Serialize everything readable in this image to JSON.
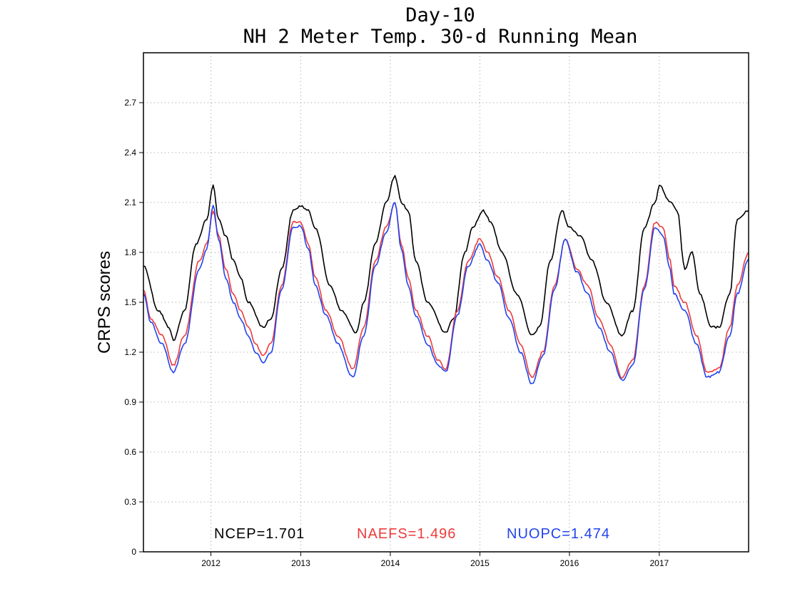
{
  "chart_data": {
    "type": "line",
    "title": "Day-10",
    "subtitle": "NH 2 Meter Temp. 30-d Running Mean",
    "xlabel": "",
    "ylabel": "CRPS scores",
    "ylim": [
      0,
      3.0
    ],
    "xlim": [
      "2011-04-01",
      "2017-12-31"
    ],
    "y_ticks": [
      "0",
      "0.3",
      "0.6",
      "0.9",
      "1.2",
      "1.5",
      "1.8",
      "2.1",
      "2.4",
      "2.7"
    ],
    "x_ticks": [
      "2012",
      "2013",
      "2014",
      "2015",
      "2016",
      "2017"
    ],
    "grid": true,
    "legend_position": "bottom-inside",
    "series": [
      {
        "name": "NCEP=1.701",
        "color": "#000000",
        "points": [
          [
            "2011-04-01",
            1.72
          ],
          [
            "2011-06-01",
            1.45
          ],
          [
            "2011-07-15",
            1.35
          ],
          [
            "2011-08-01",
            1.27
          ],
          [
            "2011-09-15",
            1.45
          ],
          [
            "2011-11-01",
            1.85
          ],
          [
            "2011-12-15",
            2.0
          ],
          [
            "2012-01-10",
            2.2
          ],
          [
            "2012-02-01",
            2.0
          ],
          [
            "2012-03-01",
            1.9
          ],
          [
            "2012-04-01",
            1.75
          ],
          [
            "2012-05-01",
            1.65
          ],
          [
            "2012-06-01",
            1.5
          ],
          [
            "2012-08-01",
            1.35
          ],
          [
            "2012-09-01",
            1.4
          ],
          [
            "2012-10-15",
            1.7
          ],
          [
            "2012-12-01",
            2.05
          ],
          [
            "2013-01-01",
            2.08
          ],
          [
            "2013-02-01",
            2.05
          ],
          [
            "2013-03-01",
            1.95
          ],
          [
            "2013-05-01",
            1.6
          ],
          [
            "2013-06-15",
            1.45
          ],
          [
            "2013-08-15",
            1.32
          ],
          [
            "2013-09-15",
            1.5
          ],
          [
            "2013-11-01",
            1.85
          ],
          [
            "2013-12-15",
            2.1
          ],
          [
            "2014-01-20",
            2.26
          ],
          [
            "2014-02-15",
            2.1
          ],
          [
            "2014-03-15",
            2.05
          ],
          [
            "2014-04-15",
            1.75
          ],
          [
            "2014-06-01",
            1.5
          ],
          [
            "2014-08-15",
            1.32
          ],
          [
            "2014-09-15",
            1.4
          ],
          [
            "2014-11-01",
            1.8
          ],
          [
            "2014-12-01",
            1.95
          ],
          [
            "2015-01-15",
            2.05
          ],
          [
            "2015-02-15",
            1.98
          ],
          [
            "2015-04-01",
            1.8
          ],
          [
            "2015-06-01",
            1.55
          ],
          [
            "2015-08-01",
            1.3
          ],
          [
            "2015-09-01",
            1.35
          ],
          [
            "2015-10-15",
            1.75
          ],
          [
            "2015-12-01",
            2.05
          ],
          [
            "2016-01-01",
            1.95
          ],
          [
            "2016-02-15",
            1.9
          ],
          [
            "2016-04-01",
            1.75
          ],
          [
            "2016-06-01",
            1.5
          ],
          [
            "2016-08-01",
            1.3
          ],
          [
            "2016-09-15",
            1.45
          ],
          [
            "2016-11-01",
            1.95
          ],
          [
            "2016-12-15",
            2.1
          ],
          [
            "2017-01-01",
            2.2
          ],
          [
            "2017-02-15",
            2.1
          ],
          [
            "2017-03-15",
            2.05
          ],
          [
            "2017-04-15",
            1.7
          ],
          [
            "2017-05-15",
            1.8
          ],
          [
            "2017-06-15",
            1.55
          ],
          [
            "2017-08-01",
            1.35
          ],
          [
            "2017-09-01",
            1.35
          ],
          [
            "2017-10-15",
            1.55
          ],
          [
            "2017-11-15",
            2.0
          ],
          [
            "2017-12-31",
            2.05
          ]
        ]
      },
      {
        "name": "NAEFS=1.496",
        "color": "#ee3b3b",
        "points": [
          [
            "2011-04-01",
            1.58
          ],
          [
            "2011-05-01",
            1.4
          ],
          [
            "2011-06-15",
            1.3
          ],
          [
            "2011-08-01",
            1.12
          ],
          [
            "2011-09-15",
            1.3
          ],
          [
            "2011-11-15",
            1.75
          ],
          [
            "2011-12-15",
            1.85
          ],
          [
            "2012-01-10",
            2.05
          ],
          [
            "2012-02-01",
            1.9
          ],
          [
            "2012-03-01",
            1.7
          ],
          [
            "2012-04-01",
            1.55
          ],
          [
            "2012-05-01",
            1.45
          ],
          [
            "2012-06-01",
            1.35
          ],
          [
            "2012-07-01",
            1.25
          ],
          [
            "2012-08-01",
            1.18
          ],
          [
            "2012-09-01",
            1.25
          ],
          [
            "2012-10-15",
            1.6
          ],
          [
            "2012-12-01",
            1.98
          ],
          [
            "2013-01-01",
            1.98
          ],
          [
            "2013-02-01",
            1.85
          ],
          [
            "2013-03-01",
            1.65
          ],
          [
            "2013-04-15",
            1.45
          ],
          [
            "2013-06-01",
            1.3
          ],
          [
            "2013-08-01",
            1.1
          ],
          [
            "2013-09-15",
            1.35
          ],
          [
            "2013-11-01",
            1.75
          ],
          [
            "2013-12-15",
            1.95
          ],
          [
            "2014-01-20",
            2.1
          ],
          [
            "2014-02-15",
            1.85
          ],
          [
            "2014-03-15",
            1.65
          ],
          [
            "2014-04-15",
            1.45
          ],
          [
            "2014-06-01",
            1.3
          ],
          [
            "2014-07-15",
            1.15
          ],
          [
            "2014-08-15",
            1.1
          ],
          [
            "2014-10-01",
            1.45
          ],
          [
            "2014-11-15",
            1.75
          ],
          [
            "2015-01-01",
            1.88
          ],
          [
            "2015-02-01",
            1.8
          ],
          [
            "2015-03-15",
            1.65
          ],
          [
            "2015-05-01",
            1.45
          ],
          [
            "2015-06-15",
            1.25
          ],
          [
            "2015-08-01",
            1.05
          ],
          [
            "2015-09-15",
            1.2
          ],
          [
            "2015-11-01",
            1.6
          ],
          [
            "2015-12-15",
            1.88
          ],
          [
            "2016-02-01",
            1.7
          ],
          [
            "2016-03-15",
            1.6
          ],
          [
            "2016-05-01",
            1.4
          ],
          [
            "2016-06-15",
            1.25
          ],
          [
            "2016-08-01",
            1.05
          ],
          [
            "2016-09-15",
            1.15
          ],
          [
            "2016-11-01",
            1.6
          ],
          [
            "2016-12-15",
            1.98
          ],
          [
            "2017-01-15",
            1.95
          ],
          [
            "2017-02-15",
            1.75
          ],
          [
            "2017-03-01",
            1.6
          ],
          [
            "2017-04-15",
            1.5
          ],
          [
            "2017-06-01",
            1.3
          ],
          [
            "2017-07-15",
            1.08
          ],
          [
            "2017-09-01",
            1.1
          ],
          [
            "2017-10-15",
            1.35
          ],
          [
            "2017-11-15",
            1.6
          ],
          [
            "2017-12-31",
            1.8
          ]
        ]
      },
      {
        "name": "NUOPC=1.474",
        "color": "#2244ee",
        "points": [
          [
            "2011-04-01",
            1.55
          ],
          [
            "2011-05-01",
            1.38
          ],
          [
            "2011-06-15",
            1.25
          ],
          [
            "2011-08-01",
            1.08
          ],
          [
            "2011-09-15",
            1.25
          ],
          [
            "2011-11-15",
            1.7
          ],
          [
            "2011-12-15",
            1.82
          ],
          [
            "2012-01-10",
            2.08
          ],
          [
            "2012-02-01",
            1.88
          ],
          [
            "2012-03-01",
            1.65
          ],
          [
            "2012-04-01",
            1.5
          ],
          [
            "2012-05-01",
            1.4
          ],
          [
            "2012-06-01",
            1.3
          ],
          [
            "2012-07-01",
            1.2
          ],
          [
            "2012-08-01",
            1.14
          ],
          [
            "2012-09-01",
            1.2
          ],
          [
            "2012-10-15",
            1.58
          ],
          [
            "2012-12-01",
            1.95
          ],
          [
            "2013-01-01",
            1.96
          ],
          [
            "2013-02-01",
            1.82
          ],
          [
            "2013-03-01",
            1.6
          ],
          [
            "2013-04-15",
            1.42
          ],
          [
            "2013-06-01",
            1.25
          ],
          [
            "2013-08-01",
            1.05
          ],
          [
            "2013-09-15",
            1.3
          ],
          [
            "2013-11-01",
            1.72
          ],
          [
            "2013-12-15",
            1.92
          ],
          [
            "2014-01-20",
            2.1
          ],
          [
            "2014-02-15",
            1.82
          ],
          [
            "2014-03-15",
            1.6
          ],
          [
            "2014-04-15",
            1.42
          ],
          [
            "2014-06-01",
            1.25
          ],
          [
            "2014-07-15",
            1.12
          ],
          [
            "2014-08-15",
            1.08
          ],
          [
            "2014-10-01",
            1.42
          ],
          [
            "2014-11-15",
            1.72
          ],
          [
            "2015-01-01",
            1.85
          ],
          [
            "2015-02-01",
            1.75
          ],
          [
            "2015-03-15",
            1.62
          ],
          [
            "2015-05-01",
            1.4
          ],
          [
            "2015-06-15",
            1.2
          ],
          [
            "2015-08-01",
            1.01
          ],
          [
            "2015-09-15",
            1.18
          ],
          [
            "2015-11-01",
            1.58
          ],
          [
            "2015-12-15",
            1.88
          ],
          [
            "2016-02-01",
            1.68
          ],
          [
            "2016-03-15",
            1.55
          ],
          [
            "2016-05-01",
            1.35
          ],
          [
            "2016-06-15",
            1.2
          ],
          [
            "2016-08-01",
            1.03
          ],
          [
            "2016-09-15",
            1.12
          ],
          [
            "2016-11-01",
            1.58
          ],
          [
            "2016-12-15",
            1.95
          ],
          [
            "2017-01-15",
            1.9
          ],
          [
            "2017-02-15",
            1.7
          ],
          [
            "2017-03-01",
            1.55
          ],
          [
            "2017-04-15",
            1.45
          ],
          [
            "2017-06-01",
            1.25
          ],
          [
            "2017-07-15",
            1.05
          ],
          [
            "2017-09-01",
            1.08
          ],
          [
            "2017-10-15",
            1.3
          ],
          [
            "2017-11-15",
            1.55
          ],
          [
            "2017-12-31",
            1.76
          ]
        ]
      }
    ]
  }
}
